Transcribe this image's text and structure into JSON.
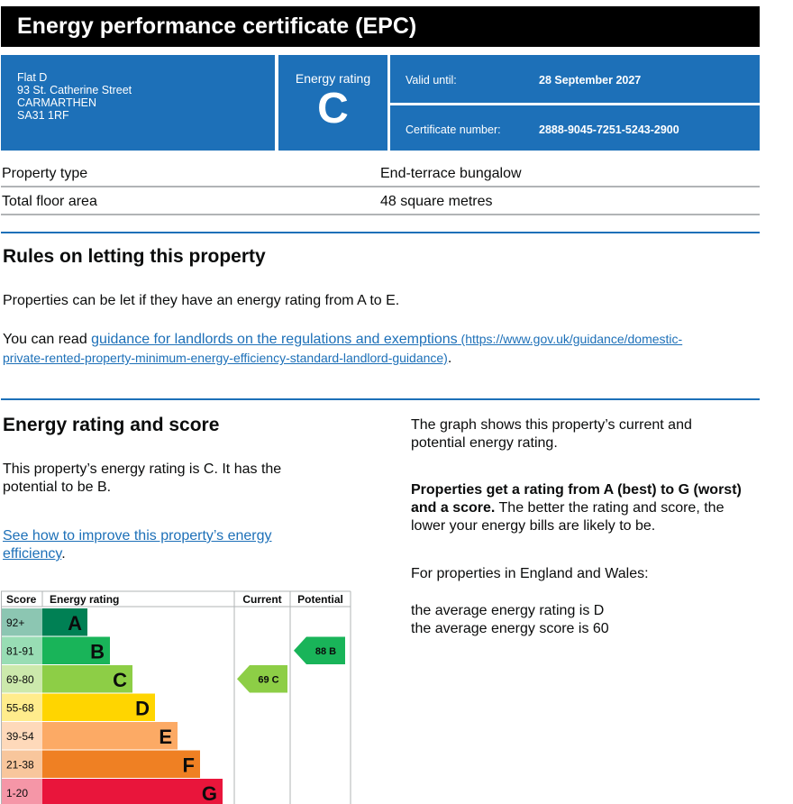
{
  "header": {
    "title": "Energy performance certificate (EPC)"
  },
  "address": {
    "line1": "Flat D",
    "line2": "93 St. Catherine Street",
    "line3": "CARMARTHEN",
    "line4": "SA31 1RF"
  },
  "rating": {
    "label": "Energy rating",
    "value": "C"
  },
  "valid": {
    "label": "Valid until:",
    "value": "28 September 2027"
  },
  "certificate": {
    "label": "Certificate number:",
    "value": "2888-9045-7251-5243-2900"
  },
  "property": {
    "type_label": "Property type",
    "type_value": "End-terrace bungalow",
    "area_label": "Total floor area",
    "area_value": "48 square metres"
  },
  "letting": {
    "heading": "Rules on letting this property",
    "text1": "Properties can be let if they have an energy rating from A to E.",
    "text2_prefix": "You can read ",
    "link_text": "guidance for landlords on the regulations and exemptions",
    "link_url_line1": " (https://www.gov.uk/guidance/domestic-",
    "link_url_line2": "private-rented-property-minimum-energy-efficiency-standard-landlord-guidance)",
    "text2_suffix": "."
  },
  "energy": {
    "heading": "Energy rating and score",
    "text1_line1": "This property’s energy rating is C. It has the",
    "text1_line2": "potential to be B.",
    "improve_link_line1": "See how to improve this property’s energy",
    "improve_link_line2": "efficiency",
    "improve_suffix": "."
  },
  "side": {
    "graph_line1": "The graph shows this property’s current and",
    "graph_line2": "potential energy rating.",
    "bold_line1": "Properties get a rating from A (best) to G (worst)",
    "bold_line2": "and a score.",
    "rest_line1": " The better the rating and score, the",
    "rest_line2": "lower your energy bills are likely to be.",
    "england": "For properties in England and Wales:",
    "avg_rating": "the average energy rating is D",
    "avg_score": "the average energy score is 60"
  },
  "chart_data": {
    "type": "table",
    "headers": {
      "score": "Score",
      "rating": "Energy rating",
      "current": "Current",
      "potential": "Potential"
    },
    "bands": [
      {
        "score": "92+",
        "letter": "A",
        "color": "#008054"
      },
      {
        "score": "81-91",
        "letter": "B",
        "color": "#19b459"
      },
      {
        "score": "69-80",
        "letter": "C",
        "color": "#8dce46"
      },
      {
        "score": "55-68",
        "letter": "D",
        "color": "#ffd500"
      },
      {
        "score": "39-54",
        "letter": "E",
        "color": "#fcaa65"
      },
      {
        "score": "21-38",
        "letter": "F",
        "color": "#ef8023"
      },
      {
        "score": "1-20",
        "letter": "G",
        "color": "#e9153b"
      }
    ],
    "current": {
      "score": 69,
      "letter": "C",
      "label": "69  C",
      "color": "#8dce46"
    },
    "potential": {
      "score": 88,
      "letter": "B",
      "label": "88  B",
      "color": "#19b459"
    }
  }
}
